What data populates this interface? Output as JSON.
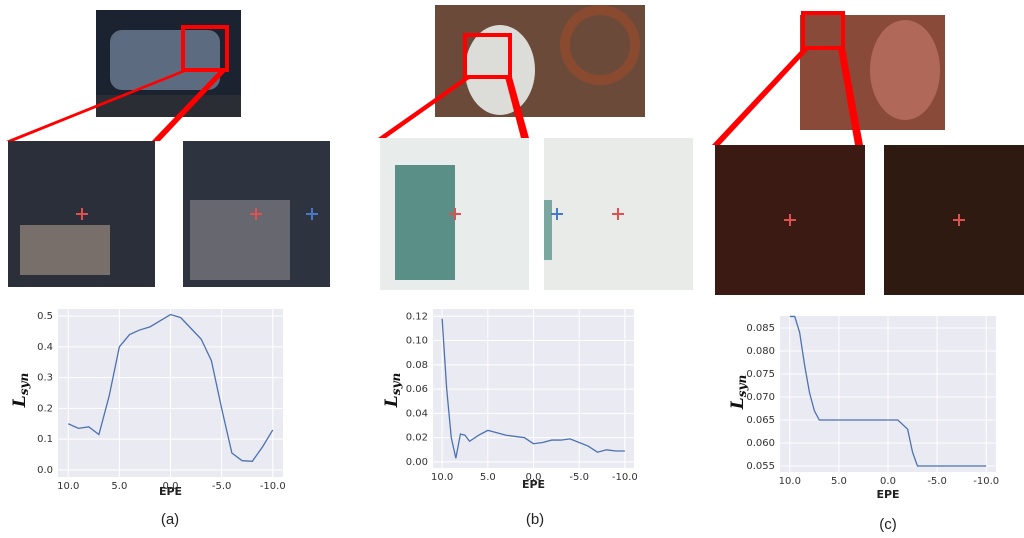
{
  "chart_data": [
    {
      "type": "line",
      "caption": "(a)",
      "xlabel": "EPE",
      "ylabel": "L",
      "ylabel_sub": "syn",
      "x": [
        10,
        9,
        8,
        7,
        6,
        5,
        4,
        3,
        2,
        1,
        0,
        -1,
        -2,
        -3,
        -4,
        -5,
        -6,
        -7,
        -8,
        -9,
        -10
      ],
      "series": [
        {
          "color": "#4c72b0",
          "values": [
            0.15,
            0.135,
            0.14,
            0.115,
            0.24,
            0.4,
            0.44,
            0.455,
            0.465,
            0.485,
            0.505,
            0.495,
            0.46,
            0.425,
            0.355,
            0.2,
            0.055,
            0.03,
            0.028,
            0.075,
            0.13
          ]
        }
      ],
      "xlim": [
        11,
        -11
      ],
      "xticks": [
        {
          "value": 10,
          "label": "10.0"
        },
        {
          "value": 5,
          "label": "5.0"
        },
        {
          "value": 0,
          "label": "0.0"
        },
        {
          "value": -5,
          "label": "-5.0"
        },
        {
          "value": -10,
          "label": "-10.0"
        }
      ],
      "ylim": [
        -0.023,
        0.523
      ],
      "yticks": [
        {
          "value": 0,
          "label": "0.0"
        },
        0.1,
        0.2,
        0.3,
        0.4,
        0.5
      ],
      "grid": true
    },
    {
      "type": "line",
      "caption": "(b)",
      "xlabel": "EPE",
      "ylabel": "L",
      "ylabel_sub": "syn",
      "x": [
        10,
        9.5,
        9,
        8.5,
        8,
        7.5,
        7,
        6,
        5,
        4,
        3,
        2,
        1,
        0,
        -1,
        -2,
        -3,
        -4,
        -5,
        -6,
        -7,
        -8,
        -9,
        -10
      ],
      "series": [
        {
          "color": "#4c72b0",
          "values": [
            0.118,
            0.06,
            0.02,
            0.003,
            0.023,
            0.022,
            0.017,
            0.022,
            0.026,
            0.024,
            0.022,
            0.021,
            0.02,
            0.015,
            0.016,
            0.018,
            0.018,
            0.019,
            0.016,
            0.013,
            0.008,
            0.01,
            0.009,
            0.009
          ]
        }
      ],
      "xlim": [
        11,
        -11
      ],
      "xticks": [
        {
          "value": 10,
          "label": "10.0"
        },
        {
          "value": 5,
          "label": "5.0"
        },
        {
          "value": 0,
          "label": "0.0"
        },
        {
          "value": -5,
          "label": "-5.0"
        },
        {
          "value": -10,
          "label": "-10.0"
        }
      ],
      "ylim": [
        -0.005,
        0.126
      ],
      "yticks": [
        {
          "value": 0,
          "label": "0.00"
        },
        0.02,
        0.04,
        0.06,
        0.08,
        {
          "value": 0.1,
          "label": "0.10"
        },
        0.12
      ],
      "grid": true
    },
    {
      "type": "line",
      "caption": "(c)",
      "xlabel": "EPE",
      "ylabel": "L",
      "ylabel_sub": "syn",
      "x": [
        10,
        9.5,
        9,
        8.5,
        8,
        7.5,
        7,
        6,
        5,
        4,
        3,
        2,
        1,
        0,
        -1,
        -2,
        -2.5,
        -3,
        -4,
        -5,
        -6,
        -7,
        -8,
        -9,
        -10
      ],
      "series": [
        {
          "color": "#4c72b0",
          "values": [
            0.0875,
            0.0875,
            0.084,
            0.077,
            0.071,
            0.067,
            0.065,
            0.065,
            0.065,
            0.065,
            0.065,
            0.065,
            0.065,
            0.065,
            0.065,
            0.063,
            0.058,
            0.055,
            0.055,
            0.055,
            0.055,
            0.055,
            0.055,
            0.055,
            0.055
          ]
        }
      ],
      "xlim": [
        11,
        -11
      ],
      "xticks": [
        {
          "value": 10,
          "label": "10.0"
        },
        {
          "value": 5,
          "label": "5.0"
        },
        {
          "value": 0,
          "label": "0.0"
        },
        {
          "value": -5,
          "label": "-5.0"
        },
        {
          "value": -10,
          "label": "-10.0"
        }
      ],
      "ylim": [
        0.0537,
        0.0876
      ],
      "yticks": [
        0.055,
        {
          "value": 0.06,
          "label": "0.060"
        },
        0.065,
        {
          "value": 0.07,
          "label": "0.070"
        },
        0.075,
        {
          "value": 0.08,
          "label": "0.080"
        },
        0.085
      ],
      "grid": true
    }
  ]
}
